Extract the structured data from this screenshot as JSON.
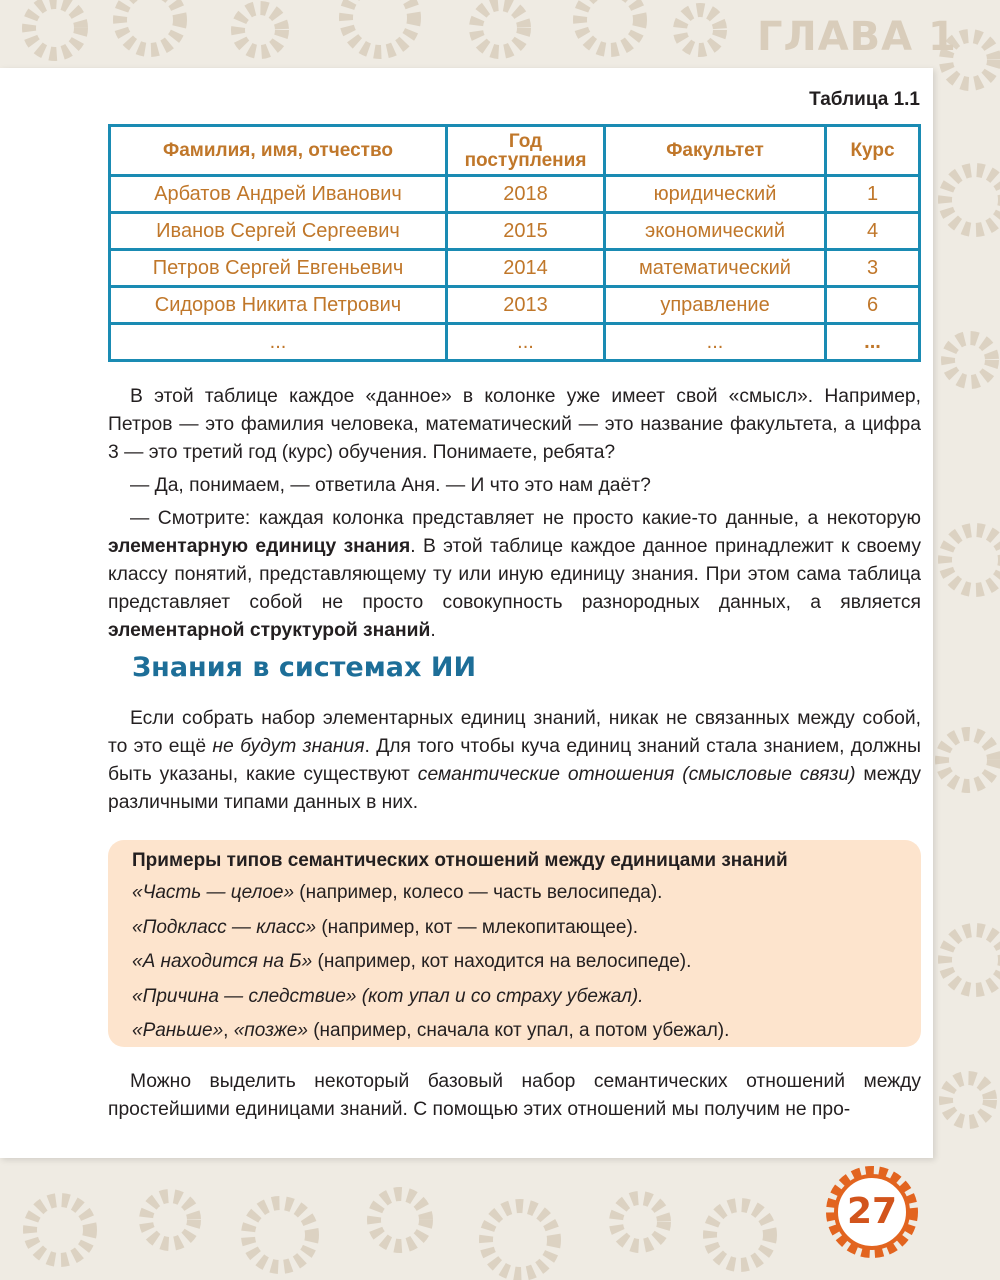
{
  "header": {
    "chapter": "ГЛАВА 1"
  },
  "table": {
    "caption": "Таблица 1.1",
    "headers": [
      "Фамилия, имя, отчество",
      "Год поступления",
      "Факультет",
      "Курс"
    ],
    "rows": [
      [
        "Арбатов Андрей Иванович",
        "2018",
        "юридический",
        "1"
      ],
      [
        "Иванов Сергей Сергеевич",
        "2015",
        "экономический",
        "4"
      ],
      [
        "Петров Сергей Евгеньевич",
        "2014",
        "математический",
        "3"
      ],
      [
        "Сидоров Никита Петрович",
        "2013",
        "управление",
        "6"
      ],
      [
        "...",
        "...",
        "...",
        "..."
      ]
    ]
  },
  "paragraphs": {
    "p1": "В этой таблице каждое «данное» в колонке уже имеет свой «смысл». Например, Петров — это фамилия человека, математический — это название факультета, а цифра 3 — это третий год (курс) обучения. Понимаете, ребята?",
    "p2": "— Да, понимаем, — ответила Аня. — И что это нам даёт?",
    "p3a": "— Смотрите: каждая колонка представляет не просто какие-то данные, а некоторую ",
    "p3b": "элементарную единицу знания",
    "p3c": ". В этой таблице каждое данное принадлежит к своему классу понятий, представляющему ту или иную единицу знания. При этом сама таблица представляет собой не просто совокупность разнородных данных, а является ",
    "p3d": "элементарной структурой знаний",
    "p3e": ".",
    "p4a": "Если собрать набор элементарных единиц знаний, никак не связанных между собой, то это ещё ",
    "p4b": "не будут знания",
    "p4c": ". Для того чтобы куча единиц знаний стала знанием, должны быть указаны, какие существуют ",
    "p4d": "семантические отношения (смысловые связи)",
    "p4e": " между различными типами данных в них.",
    "p5": "Можно выделить некоторый базовый набор семантических отношений между простейшими единицами знаний. С помощью этих отношений мы получим не про-"
  },
  "section_title": "Знания в системах ИИ",
  "box": {
    "title": "Примеры типов семантических отношений между единицами знаний",
    "items": [
      {
        "i": "«Часть — целое»",
        "t": " (например, колесо — часть велосипеда)."
      },
      {
        "i": "«Подкласс — класс»",
        "t": " (например, кот — млекопитающее)."
      },
      {
        "i": "«А находится на Б»",
        "t": " (например, кот находится на велосипеде)."
      },
      {
        "i": "«Причина — следствие» (кот упал и со страху убежал).",
        "t": ""
      },
      {
        "i": "«Раньше»",
        "t": ", ",
        "i2": "«позже»",
        "t2": " (например, сначала кот упал, а потом убежал)."
      }
    ]
  },
  "page_number": "27",
  "colors": {
    "table_border": "#1a8bb3",
    "table_text": "#c0772a",
    "heading": "#1d6e98",
    "box_bg": "#fde4cd",
    "page_number": "#d2541c"
  }
}
